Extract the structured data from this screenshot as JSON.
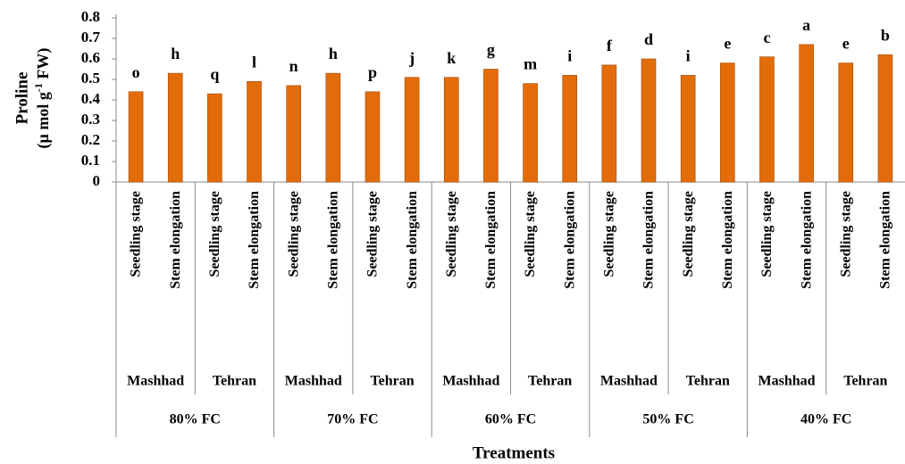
{
  "chart_data": {
    "type": "bar",
    "ylabel": {
      "line1": "Proline",
      "line2_pre": "(µ mol g",
      "line2_sup": "-1",
      "line2_post": " FW)"
    },
    "xlabel": "Treatments",
    "categories": [
      "Seedling stage",
      "Stem elongation",
      "Seedling stage",
      "Stem elongation",
      "Seedling stage",
      "Stem elongation",
      "Seedling stage",
      "Stem elongation",
      "Seedling stage",
      "Stem elongation",
      "Seedling stage",
      "Stem elongation",
      "Seedling stage",
      "Stem elongation",
      "Seedling stage",
      "Stem elongation",
      "Seedling stage",
      "Stem elongation",
      "Seedling stage",
      "Stem elongation"
    ],
    "locations": [
      "Mashhad",
      "Tehran",
      "Mashhad",
      "Tehran",
      "Mashhad",
      "Tehran",
      "Mashhad",
      "Tehran",
      "Mashhad",
      "Tehran"
    ],
    "fc_levels": [
      "80% FC",
      "70% FC",
      "60% FC",
      "50% FC",
      "40% FC"
    ],
    "values": [
      0.44,
      0.53,
      0.43,
      0.49,
      0.47,
      0.53,
      0.44,
      0.51,
      0.51,
      0.55,
      0.48,
      0.52,
      0.57,
      0.6,
      0.52,
      0.58,
      0.61,
      0.67,
      0.58,
      0.62
    ],
    "letters": [
      "o",
      "h",
      "q",
      "l",
      "n",
      "h",
      "p",
      "j",
      "k",
      "g",
      "m",
      "i",
      "f",
      "d",
      "i",
      "e",
      "c",
      "a",
      "e",
      "b"
    ],
    "color": "#e36c0a",
    "ylim": [
      0,
      0.8
    ],
    "yticks": [
      0,
      0.1,
      0.2,
      0.3,
      0.4,
      0.5,
      0.6,
      0.7,
      0.8
    ]
  }
}
